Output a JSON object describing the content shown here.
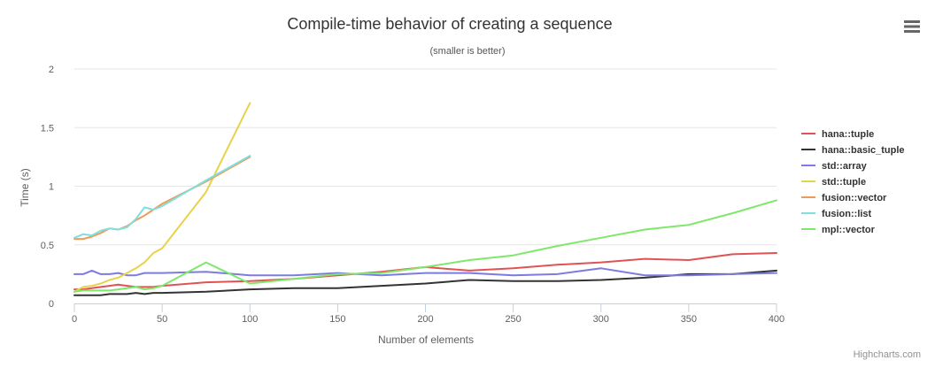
{
  "menu": {
    "icon": "hamburger-menu-icon"
  },
  "credits": "Highcharts.com",
  "chart_data": {
    "type": "line",
    "title": "Compile-time behavior of creating a sequence",
    "subtitle": "(smaller is better)",
    "xlabel": "Number of elements",
    "ylabel": "Time (s)",
    "xlim": [
      0,
      400
    ],
    "ylim": [
      0,
      2
    ],
    "x_ticks": [
      "0",
      "50",
      "100",
      "150",
      "200",
      "250",
      "300",
      "350",
      "400"
    ],
    "y_ticks": [
      "0",
      "0.5",
      "1",
      "1.5",
      "2"
    ],
    "grid": true,
    "legend_position": "right",
    "series": [
      {
        "name": "hana::tuple",
        "color": "#e05353",
        "points": [
          [
            0,
            0.12
          ],
          [
            5,
            0.12
          ],
          [
            10,
            0.13
          ],
          [
            15,
            0.14
          ],
          [
            20,
            0.15
          ],
          [
            25,
            0.16
          ],
          [
            30,
            0.15
          ],
          [
            35,
            0.14
          ],
          [
            40,
            0.14
          ],
          [
            45,
            0.14
          ],
          [
            50,
            0.15
          ],
          [
            75,
            0.18
          ],
          [
            100,
            0.19
          ],
          [
            125,
            0.21
          ],
          [
            150,
            0.24
          ],
          [
            175,
            0.27
          ],
          [
            200,
            0.31
          ],
          [
            225,
            0.28
          ],
          [
            250,
            0.3
          ],
          [
            275,
            0.33
          ],
          [
            300,
            0.35
          ],
          [
            325,
            0.38
          ],
          [
            350,
            0.37
          ],
          [
            375,
            0.42
          ],
          [
            400,
            0.43
          ]
        ]
      },
      {
        "name": "hana::basic_tuple",
        "color": "#333333",
        "points": [
          [
            0,
            0.07
          ],
          [
            5,
            0.07
          ],
          [
            10,
            0.07
          ],
          [
            15,
            0.07
          ],
          [
            20,
            0.08
          ],
          [
            25,
            0.08
          ],
          [
            30,
            0.08
          ],
          [
            35,
            0.09
          ],
          [
            40,
            0.08
          ],
          [
            45,
            0.09
          ],
          [
            50,
            0.09
          ],
          [
            75,
            0.1
          ],
          [
            100,
            0.12
          ],
          [
            125,
            0.13
          ],
          [
            150,
            0.13
          ],
          [
            175,
            0.15
          ],
          [
            200,
            0.17
          ],
          [
            225,
            0.2
          ],
          [
            250,
            0.19
          ],
          [
            275,
            0.19
          ],
          [
            300,
            0.2
          ],
          [
            325,
            0.22
          ],
          [
            350,
            0.25
          ],
          [
            375,
            0.25
          ],
          [
            400,
            0.28
          ]
        ]
      },
      {
        "name": "std::array",
        "color": "#7b7be0",
        "points": [
          [
            0,
            0.25
          ],
          [
            5,
            0.25
          ],
          [
            10,
            0.28
          ],
          [
            15,
            0.25
          ],
          [
            20,
            0.25
          ],
          [
            25,
            0.26
          ],
          [
            30,
            0.24
          ],
          [
            35,
            0.24
          ],
          [
            40,
            0.26
          ],
          [
            45,
            0.26
          ],
          [
            50,
            0.26
          ],
          [
            75,
            0.27
          ],
          [
            100,
            0.24
          ],
          [
            125,
            0.24
          ],
          [
            150,
            0.26
          ],
          [
            175,
            0.24
          ],
          [
            200,
            0.26
          ],
          [
            225,
            0.26
          ],
          [
            250,
            0.24
          ],
          [
            275,
            0.25
          ],
          [
            300,
            0.3
          ],
          [
            325,
            0.24
          ],
          [
            350,
            0.24
          ],
          [
            375,
            0.25
          ],
          [
            400,
            0.26
          ]
        ]
      },
      {
        "name": "std::tuple",
        "color": "#e8d24a",
        "points": [
          [
            0,
            0.1
          ],
          [
            5,
            0.14
          ],
          [
            10,
            0.15
          ],
          [
            15,
            0.17
          ],
          [
            20,
            0.2
          ],
          [
            25,
            0.22
          ],
          [
            30,
            0.26
          ],
          [
            35,
            0.3
          ],
          [
            40,
            0.35
          ],
          [
            45,
            0.43
          ],
          [
            50,
            0.47
          ],
          [
            75,
            0.95
          ],
          [
            100,
            1.71
          ]
        ]
      },
      {
        "name": "fusion::vector",
        "color": "#f09a5a",
        "points": [
          [
            0,
            0.55
          ],
          [
            5,
            0.55
          ],
          [
            10,
            0.57
          ],
          [
            15,
            0.6
          ],
          [
            20,
            0.64
          ],
          [
            25,
            0.63
          ],
          [
            30,
            0.66
          ],
          [
            35,
            0.71
          ],
          [
            40,
            0.75
          ],
          [
            45,
            0.8
          ],
          [
            50,
            0.85
          ],
          [
            75,
            1.04
          ],
          [
            100,
            1.25
          ]
        ]
      },
      {
        "name": "fusion::list",
        "color": "#7ee0dc",
        "points": [
          [
            0,
            0.56
          ],
          [
            5,
            0.59
          ],
          [
            10,
            0.58
          ],
          [
            15,
            0.62
          ],
          [
            20,
            0.64
          ],
          [
            25,
            0.63
          ],
          [
            30,
            0.65
          ],
          [
            35,
            0.72
          ],
          [
            40,
            0.82
          ],
          [
            45,
            0.8
          ],
          [
            50,
            0.83
          ],
          [
            75,
            1.05
          ],
          [
            100,
            1.26
          ]
        ]
      },
      {
        "name": "mpl::vector",
        "color": "#7ee86a",
        "points": [
          [
            0,
            0.1
          ],
          [
            5,
            0.11
          ],
          [
            10,
            0.11
          ],
          [
            15,
            0.11
          ],
          [
            20,
            0.11
          ],
          [
            25,
            0.12
          ],
          [
            30,
            0.13
          ],
          [
            35,
            0.14
          ],
          [
            40,
            0.12
          ],
          [
            45,
            0.13
          ],
          [
            50,
            0.15
          ],
          [
            75,
            0.35
          ],
          [
            100,
            0.17
          ],
          [
            125,
            0.21
          ],
          [
            150,
            0.25
          ],
          [
            175,
            0.26
          ],
          [
            200,
            0.31
          ],
          [
            225,
            0.37
          ],
          [
            250,
            0.41
          ],
          [
            275,
            0.49
          ],
          [
            300,
            0.56
          ],
          [
            325,
            0.63
          ],
          [
            350,
            0.67
          ],
          [
            375,
            0.77
          ],
          [
            400,
            0.88
          ]
        ]
      }
    ]
  }
}
